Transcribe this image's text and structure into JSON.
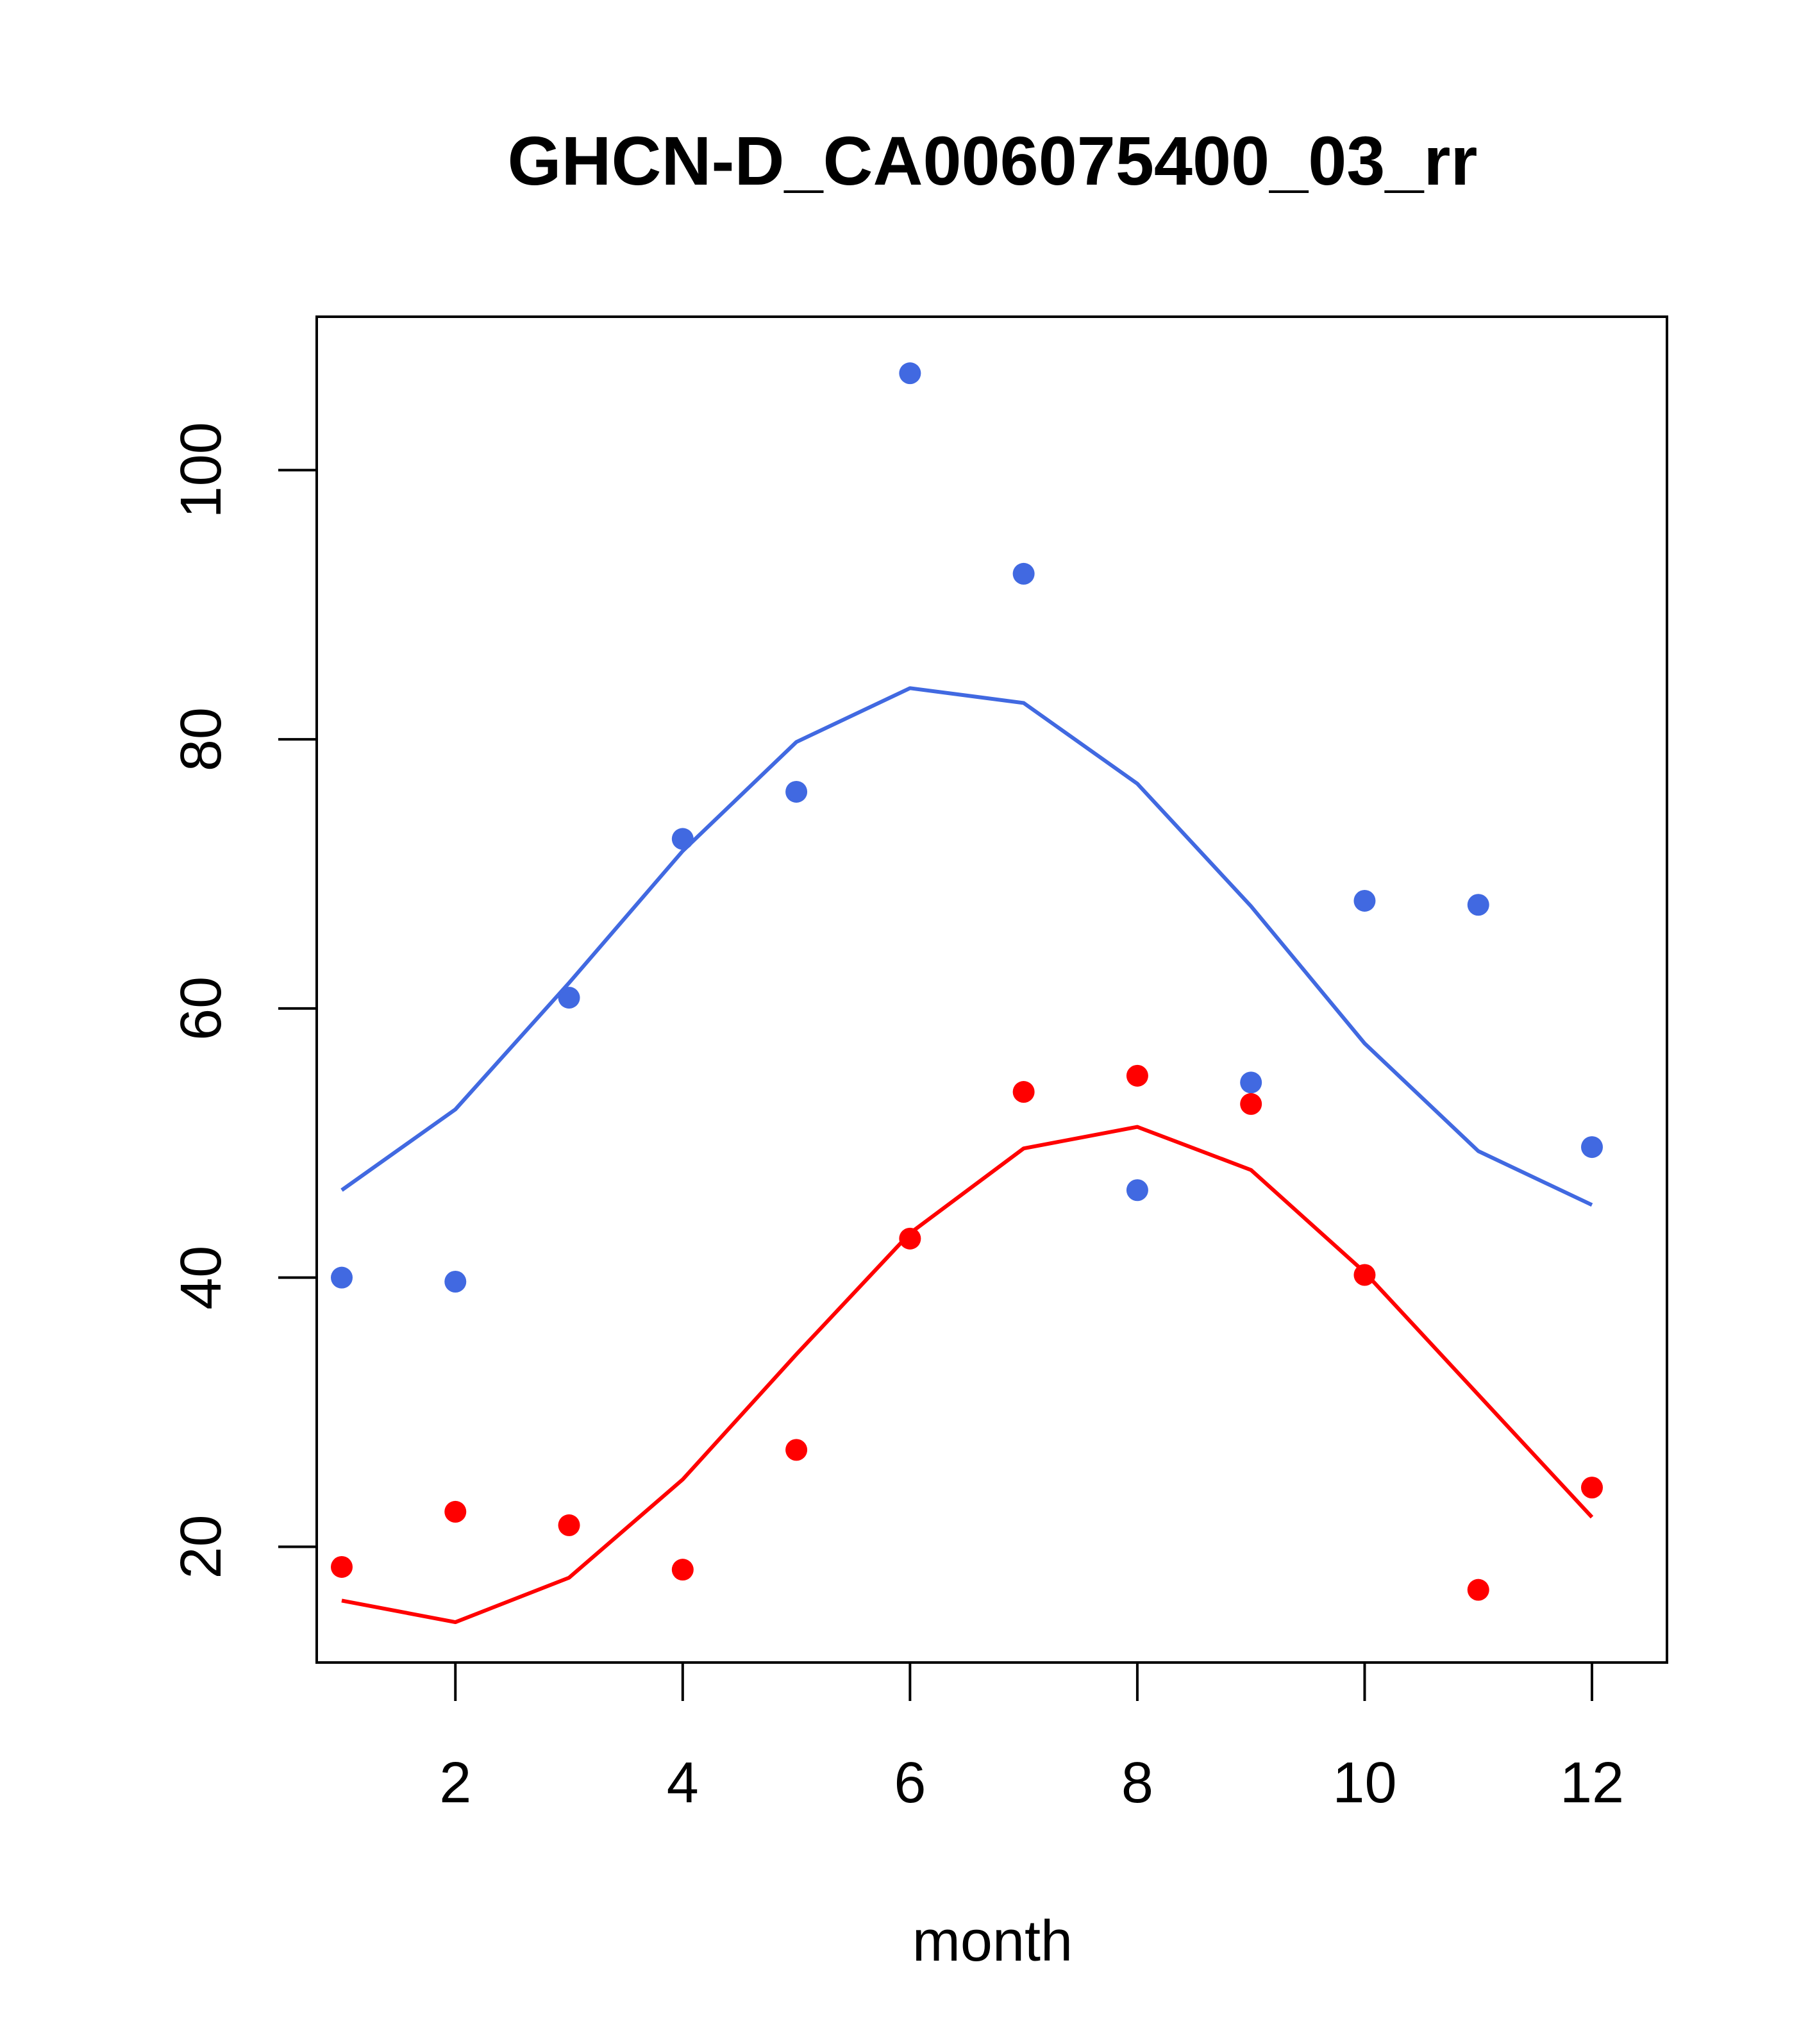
{
  "chart_data": {
    "type": "line",
    "title": "GHCN-D_CA006075400_03_rr",
    "xlabel": "month",
    "ylabel": "",
    "xlim": [
      0.78,
      12.66
    ],
    "ylim": [
      11.4,
      111.4
    ],
    "xticks": [
      2,
      4,
      6,
      8,
      10,
      12
    ],
    "yticks": [
      20,
      40,
      60,
      80,
      100
    ],
    "grid": false,
    "series": [
      {
        "name": "blue points",
        "kind": "scatter",
        "color": "#4169E1",
        "x": [
          1,
          2,
          3,
          4,
          5,
          6,
          7,
          8,
          9,
          10,
          11,
          12
        ],
        "values": [
          40.0,
          39.7,
          60.8,
          72.6,
          76.1,
          107.2,
          92.3,
          46.5,
          54.5,
          68.0,
          67.7,
          49.7
        ]
      },
      {
        "name": "blue fit",
        "kind": "line",
        "color": "#4169E1",
        "x": [
          1,
          2,
          3,
          4,
          5,
          6,
          7,
          8,
          9,
          10,
          11,
          12
        ],
        "values": [
          46.5,
          52.5,
          61.9,
          71.7,
          79.8,
          83.8,
          82.7,
          76.7,
          67.6,
          57.4,
          49.4,
          45.4
        ]
      },
      {
        "name": "red points",
        "kind": "scatter",
        "color": "#FF0000",
        "x": [
          1,
          2,
          3,
          4,
          5,
          6,
          7,
          8,
          9,
          10,
          11,
          12
        ],
        "values": [
          18.5,
          22.6,
          21.6,
          18.3,
          27.2,
          42.9,
          53.8,
          55.0,
          52.9,
          40.2,
          16.8,
          24.4
        ]
      },
      {
        "name": "red fit",
        "kind": "line",
        "color": "#FF0000",
        "x": [
          1,
          2,
          3,
          4,
          5,
          6,
          7,
          8,
          9,
          10,
          11,
          12
        ],
        "values": [
          16.0,
          14.4,
          17.7,
          25.0,
          34.3,
          43.3,
          49.6,
          51.2,
          48.0,
          40.4,
          31.3,
          22.2
        ]
      }
    ]
  }
}
